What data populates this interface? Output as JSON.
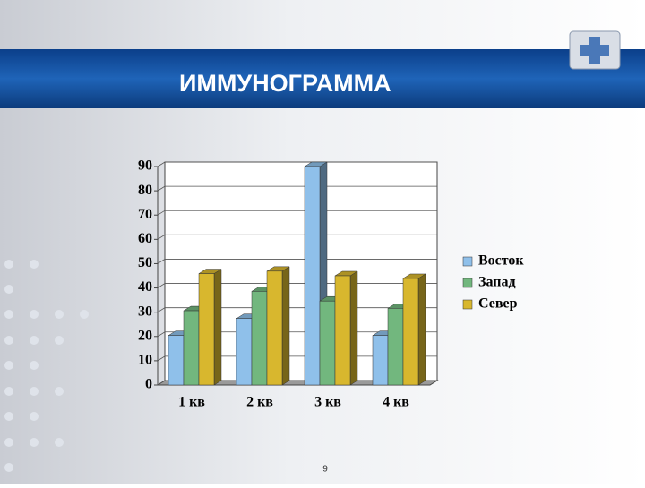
{
  "chart_data": {
    "type": "bar3d",
    "title": "ИММУНОГРАММА",
    "categories": [
      "1 кв",
      "2 кв",
      "3 кв",
      "4 кв"
    ],
    "series": [
      {
        "name": "Восток",
        "color": "#8fc0ea",
        "values": [
          20.4,
          27.4,
          90,
          20.4
        ]
      },
      {
        "name": "Запад",
        "color": "#72b77e",
        "values": [
          30.6,
          38.6,
          34.6,
          31.6
        ]
      },
      {
        "name": "Север",
        "color": "#d8b72e",
        "values": [
          45.9,
          46.9,
          45,
          43.9
        ]
      }
    ],
    "ylim": [
      0,
      90
    ],
    "yticks": [
      0,
      10,
      20,
      30,
      40,
      50,
      60,
      70,
      80,
      90
    ],
    "grid": true,
    "legend": "right"
  },
  "slide": {
    "number": "9"
  }
}
